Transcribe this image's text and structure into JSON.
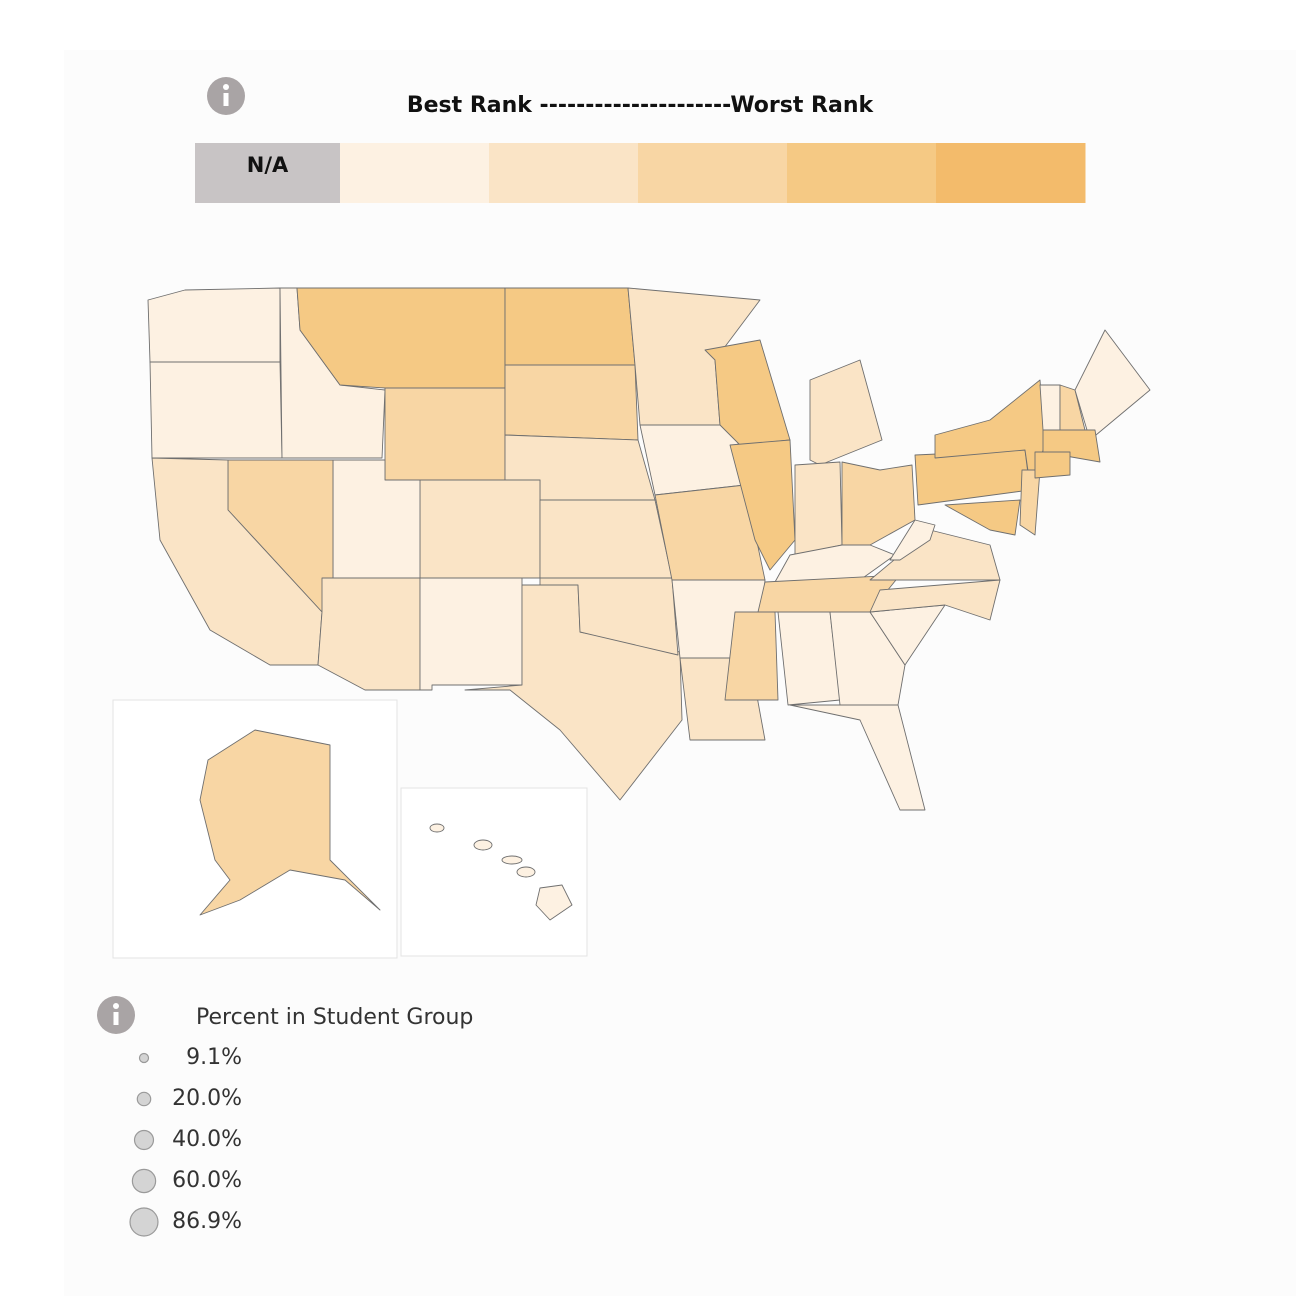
{
  "color_scale": {
    "title": "Best Rank ---------------------Worst Rank",
    "na_label": "N/A",
    "na_color": "#c8c4c5",
    "colors": [
      "#fdf1e2",
      "#fae4c6",
      "#f8d6a4",
      "#f5c984",
      "#f3bb6b"
    ]
  },
  "size_legend": {
    "title": "Percent in Student Group",
    "items": [
      {
        "value": 9.1,
        "label": "9.1%"
      },
      {
        "value": 20.0,
        "label": "20.0%"
      },
      {
        "value": 40.0,
        "label": "40.0%"
      },
      {
        "value": 60.0,
        "label": "60.0%"
      },
      {
        "value": 86.9,
        "label": "86.9%"
      }
    ]
  }
}
